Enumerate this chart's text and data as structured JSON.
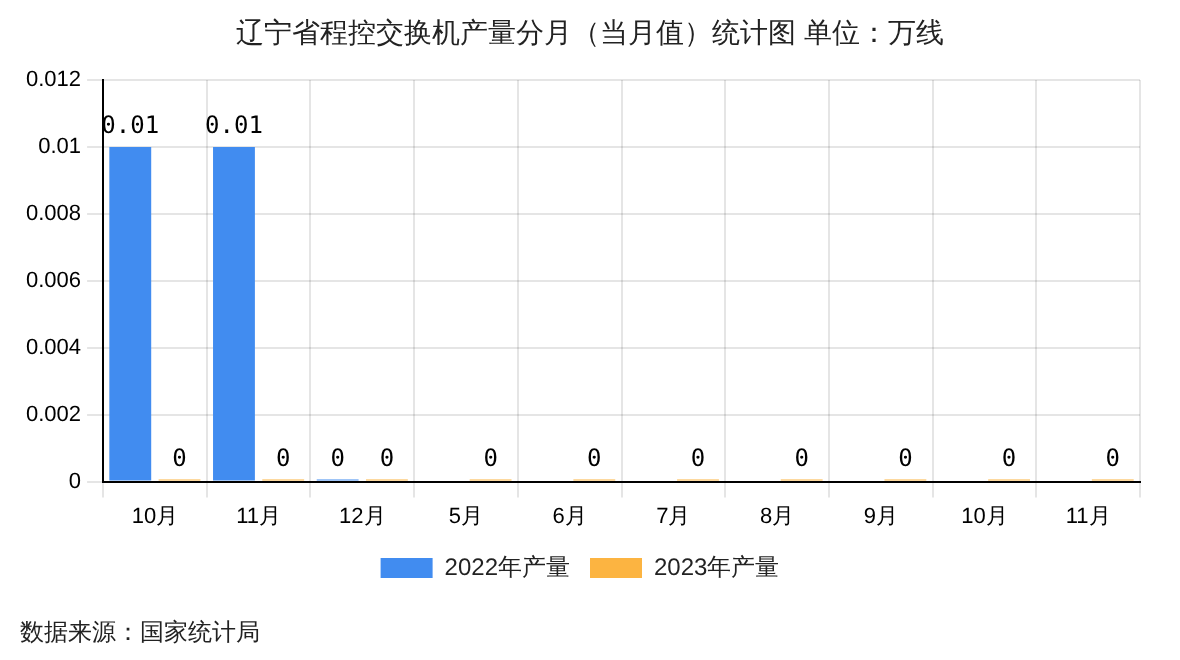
{
  "chart_data": {
    "type": "bar",
    "title": "辽宁省程控交换机产量分月（当月值）统计图 单位：万线",
    "categories": [
      "10月",
      "11月",
      "12月",
      "5月",
      "6月",
      "7月",
      "8月",
      "9月",
      "10月",
      "11月"
    ],
    "series": [
      {
        "name": "2022年产量",
        "color": "#418cf0",
        "values": [
          0.01,
          0.01,
          0,
          null,
          null,
          null,
          null,
          null,
          null,
          null
        ]
      },
      {
        "name": "2023年产量",
        "color": "#fcb441",
        "values": [
          0,
          0,
          0,
          0,
          0,
          0,
          0,
          0,
          0,
          0
        ]
      }
    ],
    "ylim": [
      0,
      0.012
    ],
    "yticks": [
      0,
      0.002,
      0.004,
      0.006,
      0.008,
      0.01,
      0.012
    ],
    "grid": true,
    "legend": "bottom",
    "data_labels": true,
    "annotations": [
      "数据来源：国家统计局"
    ]
  }
}
